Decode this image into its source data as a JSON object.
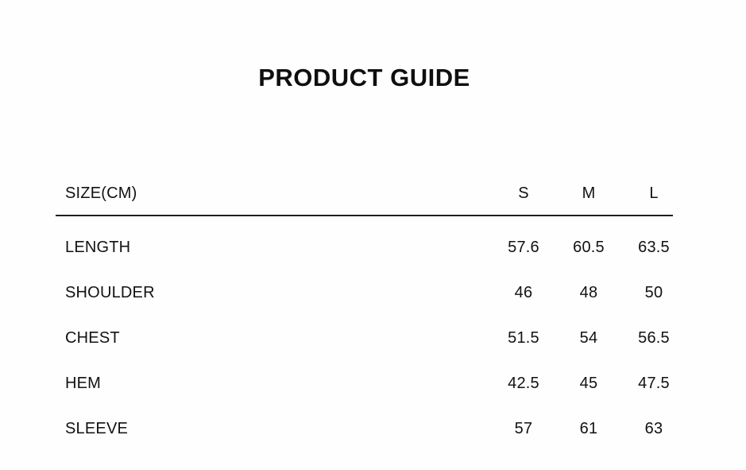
{
  "page": {
    "title": "PRODUCT GUIDE",
    "background_color": "#fefefe",
    "text_color": "#121212",
    "divider_color": "#1f1f1f"
  },
  "size_table": {
    "unit_label": "SIZE(CM)",
    "size_headers": [
      "S",
      "M",
      "L"
    ],
    "rows": [
      {
        "label": "LENGTH",
        "values": [
          "57.6",
          "60.5",
          "63.5"
        ]
      },
      {
        "label": "SHOULDER",
        "values": [
          "46",
          "48",
          "50"
        ]
      },
      {
        "label": "CHEST",
        "values": [
          "51.5",
          "54",
          "56.5"
        ]
      },
      {
        "label": "HEM",
        "values": [
          "42.5",
          "45",
          "47.5"
        ]
      },
      {
        "label": "SLEEVE",
        "values": [
          "57",
          "61",
          "63"
        ]
      }
    ]
  },
  "chart_data": {
    "type": "table",
    "title": "PRODUCT GUIDE",
    "columns": [
      "SIZE(CM)",
      "S",
      "M",
      "L"
    ],
    "rows": [
      [
        "LENGTH",
        57.6,
        60.5,
        63.5
      ],
      [
        "SHOULDER",
        46,
        48,
        50
      ],
      [
        "CHEST",
        51.5,
        54,
        56.5
      ],
      [
        "HEM",
        42.5,
        45,
        47.5
      ],
      [
        "SLEEVE",
        57,
        61,
        63
      ]
    ],
    "unit": "cm"
  }
}
